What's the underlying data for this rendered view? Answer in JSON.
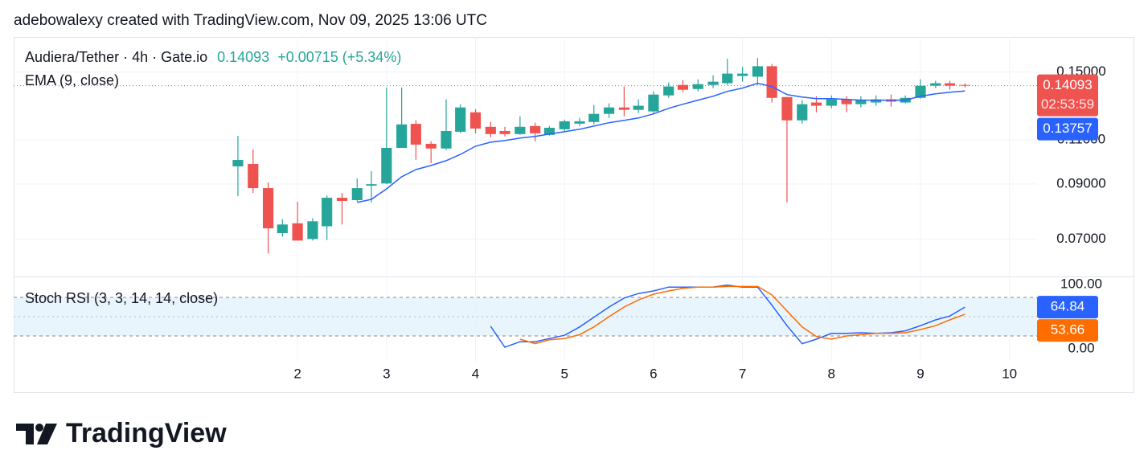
{
  "header": {
    "caption": "adebowalexy created with TradingView.com, Nov 09, 2025 13:06 UTC"
  },
  "footer": {
    "logo": "TradingView"
  },
  "chart_data": [
    {
      "type": "candlestick",
      "title": "Audiera/Tether · 4h · Gate.io",
      "change_label": "+0.00715 (+5.34%)",
      "countdown": "02:53:59",
      "log_scale": true,
      "grid": true,
      "up_color": "#26a69a",
      "down_color": "#ef5350",
      "x": [
        1.33,
        1.5,
        1.67,
        1.83,
        2,
        2.17,
        2.33,
        2.5,
        2.67,
        2.83,
        3,
        3.17,
        3.33,
        3.5,
        3.67,
        3.83,
        4,
        4.17,
        4.33,
        4.5,
        4.67,
        4.83,
        5,
        5.17,
        5.33,
        5.5,
        5.67,
        5.83,
        6,
        6.17,
        6.33,
        6.5,
        6.67,
        6.83,
        7,
        7.17,
        7.33,
        7.5,
        7.67,
        7.83,
        8,
        8.17,
        8.33,
        8.5,
        8.67,
        8.83,
        9,
        9.17,
        9.33,
        9.5
      ],
      "open": [
        0.0975,
        0.0986,
        0.0883,
        0.0719,
        0.0752,
        0.07,
        0.0742,
        0.0845,
        0.0836,
        0.0893,
        0.0902,
        0.1061,
        0.1184,
        0.1081,
        0.1058,
        0.1142,
        0.1248,
        0.1168,
        0.1146,
        0.113,
        0.1172,
        0.1126,
        0.1155,
        0.1185,
        0.1194,
        0.1239,
        0.1276,
        0.1262,
        0.1253,
        0.1348,
        0.1414,
        0.1388,
        0.1414,
        0.1425,
        0.1473,
        0.1468,
        0.154,
        0.1338,
        0.1203,
        0.1305,
        0.1286,
        0.1324,
        0.1295,
        0.1305,
        0.1324,
        0.1305,
        0.1333,
        0.1409,
        0.1425,
        0.1414
      ],
      "high": [
        0.1121,
        0.1054,
        0.0906,
        0.0766,
        0.083,
        0.077,
        0.0854,
        0.0864,
        0.0923,
        0.0954,
        0.1398,
        0.1398,
        0.1203,
        0.1093,
        0.1324,
        0.1295,
        0.1266,
        0.1194,
        0.1168,
        0.1225,
        0.119,
        0.1172,
        0.1207,
        0.1216,
        0.1291,
        0.13,
        0.1404,
        0.1324,
        0.1373,
        0.143,
        0.1446,
        0.1451,
        0.1478,
        0.1593,
        0.1534,
        0.1599,
        0.1556,
        0.1338,
        0.1319,
        0.1343,
        0.1348,
        0.1343,
        0.1343,
        0.1348,
        0.1353,
        0.1348,
        0.1451,
        0.1441,
        0.1441,
        0.1425
      ],
      "low": [
        0.0851,
        0.0864,
        0.0655,
        0.0708,
        0.0695,
        0.0695,
        0.0697,
        0.0748,
        0.083,
        0.0827,
        0.0899,
        0.1061,
        0.1005,
        0.099,
        0.105,
        0.1134,
        0.1134,
        0.1114,
        0.1118,
        0.1126,
        0.1093,
        0.1122,
        0.1142,
        0.1172,
        0.1181,
        0.1216,
        0.1225,
        0.1244,
        0.1239,
        0.1333,
        0.1368,
        0.1373,
        0.1394,
        0.1414,
        0.1435,
        0.1414,
        0.1305,
        0.0827,
        0.1185,
        0.1248,
        0.1271,
        0.1248,
        0.1276,
        0.1286,
        0.1281,
        0.13,
        0.1328,
        0.1394,
        0.1383,
        0.1399
      ],
      "close": [
        0.1004,
        0.0883,
        0.0735,
        0.0748,
        0.0695,
        0.0759,
        0.0845,
        0.0833,
        0.0883,
        0.0899,
        0.1061,
        0.1181,
        0.1077,
        0.1058,
        0.1146,
        0.1276,
        0.1159,
        0.113,
        0.113,
        0.1168,
        0.1134,
        0.1163,
        0.1198,
        0.1198,
        0.1239,
        0.1276,
        0.1262,
        0.1286,
        0.1353,
        0.1404,
        0.1383,
        0.1419,
        0.1435,
        0.1489,
        0.1489,
        0.154,
        0.1333,
        0.1203,
        0.1295,
        0.1286,
        0.1324,
        0.1295,
        0.1319,
        0.1324,
        0.131,
        0.1333,
        0.1409,
        0.1425,
        0.1409,
        0.14093
      ],
      "ema": {
        "name": "EMA (9, close)",
        "color": "#2962ff",
        "values": [
          null,
          null,
          null,
          null,
          null,
          null,
          null,
          null,
          0.0827,
          0.0839,
          0.088,
          0.093,
          0.0961,
          0.0979,
          0.1001,
          0.103,
          0.1069,
          0.1089,
          0.1097,
          0.111,
          0.1118,
          0.113,
          0.1142,
          0.1155,
          0.1172,
          0.119,
          0.1203,
          0.1216,
          0.1239,
          0.1271,
          0.1295,
          0.1319,
          0.1343,
          0.1373,
          0.1394,
          0.1425,
          0.1404,
          0.1353,
          0.1338,
          0.1328,
          0.1328,
          0.1324,
          0.1319,
          0.1319,
          0.1319,
          0.1319,
          0.1343,
          0.1358,
          0.1368,
          0.13757
        ]
      },
      "ylim": [
        0.059,
        0.176
      ],
      "yticks": [
        {
          "value": 0.07,
          "label": "0.07000"
        },
        {
          "value": 0.09,
          "label": "0.09000"
        },
        {
          "value": 0.11,
          "label": "0.11000"
        },
        {
          "value": 0.15,
          "label": "0.15000"
        }
      ],
      "xlim": [
        -1.19,
        10.31
      ],
      "xticks": [
        2,
        3,
        4,
        5,
        6,
        7,
        8,
        9,
        10
      ]
    },
    {
      "type": "line",
      "title": "Stoch RSI (3, 3, 14, 14, close)",
      "bands": [
        20,
        50,
        80
      ],
      "band_color": "#e3f2fd",
      "x": [
        1.33,
        1.5,
        1.67,
        1.83,
        2,
        2.17,
        2.33,
        2.5,
        2.67,
        2.83,
        3,
        3.17,
        3.33,
        3.5,
        3.67,
        3.83,
        4,
        4.17,
        4.33,
        4.5,
        4.67,
        4.83,
        5,
        5.17,
        5.33,
        5.5,
        5.67,
        5.83,
        6,
        6.17,
        6.33,
        6.5,
        6.67,
        6.83,
        7,
        7.17,
        7.33,
        7.5,
        7.67,
        7.83,
        8,
        8.17,
        8.33,
        8.5,
        8.67,
        8.83,
        9,
        9.17,
        9.33,
        9.5
      ],
      "series": [
        {
          "color": "#2962ff",
          "values": [
            null,
            null,
            null,
            null,
            null,
            null,
            null,
            null,
            null,
            null,
            null,
            null,
            null,
            null,
            null,
            null,
            null,
            35,
            2.5,
            11,
            11,
            16,
            21,
            34,
            49,
            65,
            79,
            86,
            90,
            96,
            96,
            96,
            96,
            99,
            96,
            96,
            68,
            36,
            8,
            15,
            24,
            24,
            25,
            24,
            25,
            28,
            36,
            45,
            51,
            64.84
          ]
        },
        {
          "color": "#ff6d00",
          "values": [
            null,
            null,
            null,
            null,
            null,
            null,
            null,
            null,
            null,
            null,
            null,
            null,
            null,
            null,
            null,
            null,
            null,
            null,
            null,
            15,
            8,
            14,
            16,
            22,
            34,
            50,
            65,
            76,
            85,
            90,
            94,
            96,
            96,
            97,
            97,
            97,
            84,
            59,
            34,
            19,
            15,
            20,
            22,
            24,
            24,
            25,
            30,
            36,
            45,
            53.66
          ]
        }
      ],
      "ylim": [
        -20,
        112.5
      ],
      "yticks": [
        {
          "value": 0,
          "label": "0.00"
        },
        {
          "value": 100,
          "label": "100.00"
        }
      ],
      "xlim": [
        -1.19,
        10.31
      ]
    }
  ]
}
